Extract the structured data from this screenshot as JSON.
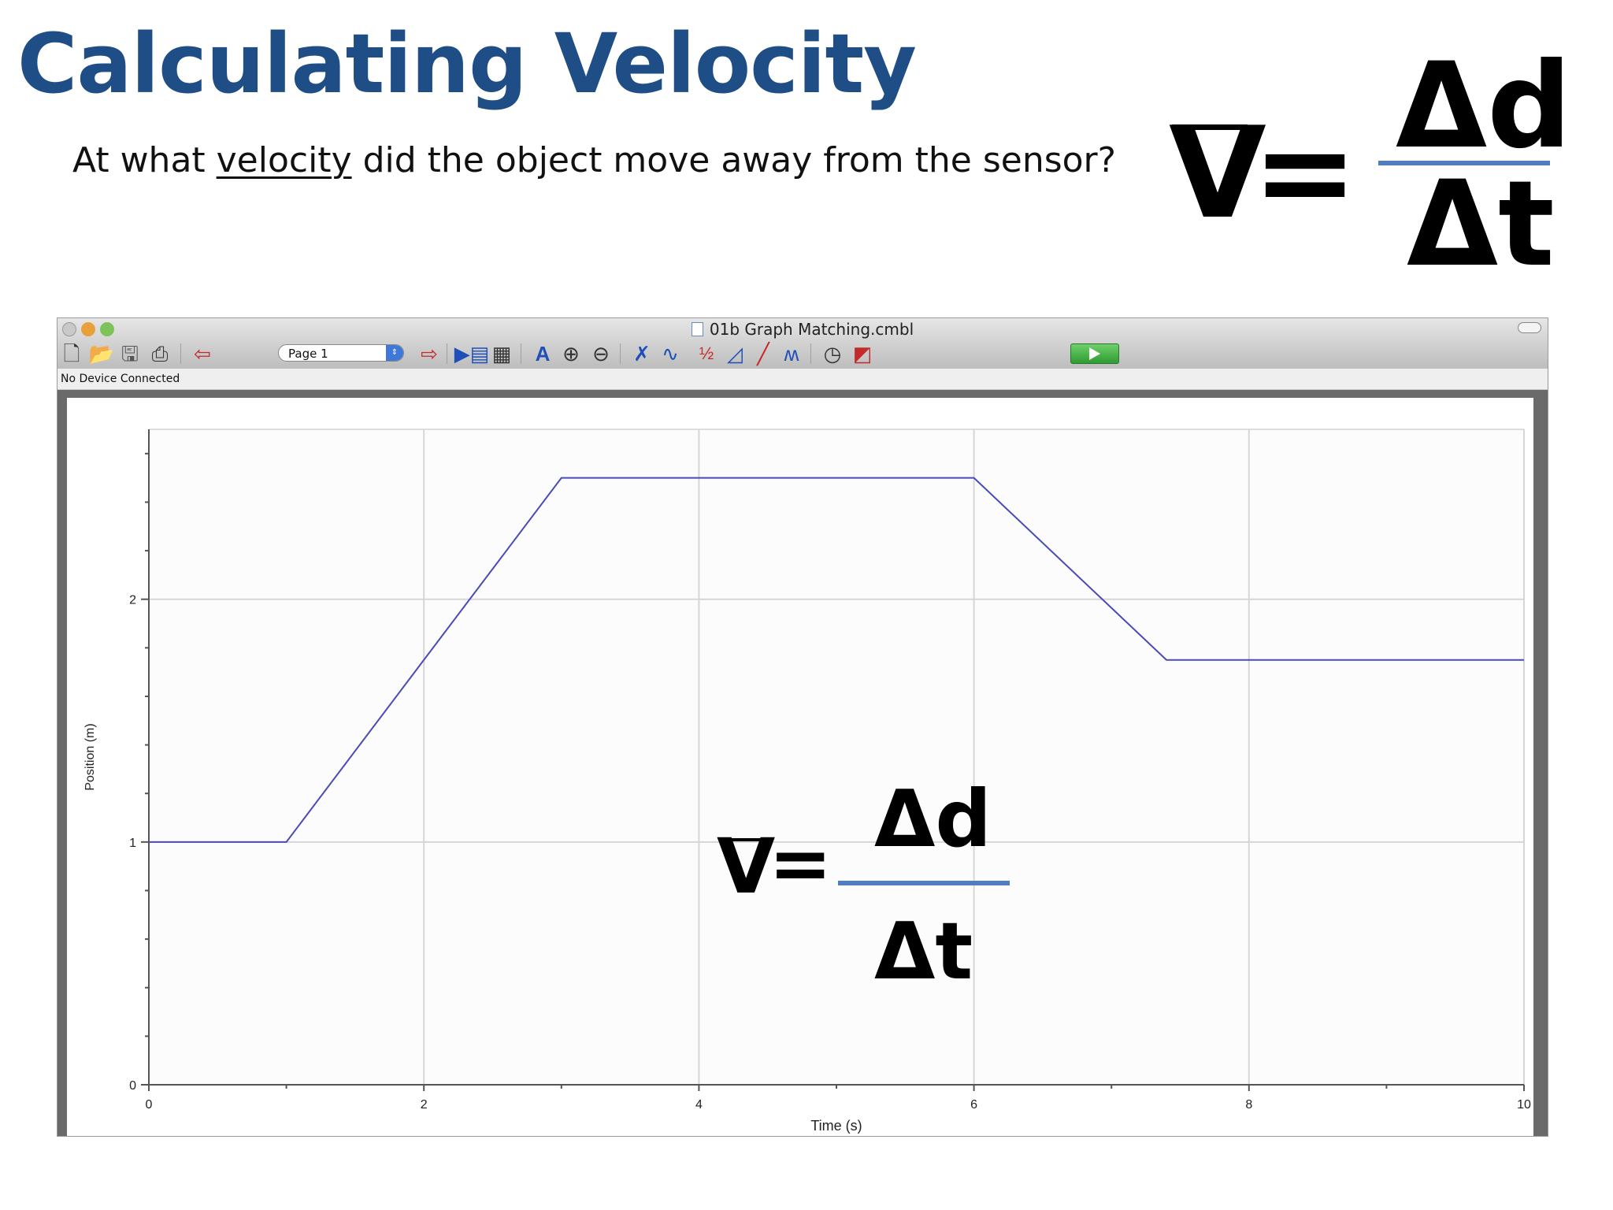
{
  "slide": {
    "title": "Calculating Velocity",
    "question_pre": "At what ",
    "question_key": "velocity",
    "question_post": " did the object move away from the sensor?",
    "colors": {
      "title": "#1f4e87",
      "fraction_line": "#4f7ec0"
    }
  },
  "formula": {
    "v": "V",
    "equals": "=",
    "numerator": "Δd",
    "denominator": "Δt"
  },
  "window": {
    "title": "01b Graph Matching.cmbl",
    "page_select": "Page 1",
    "status": "No Device Connected",
    "toolbar_icons": [
      "new-file-icon",
      "open-folder-icon",
      "save-icon",
      "print-icon",
      "previous-page-icon",
      "page-select",
      "next-page-icon",
      "data-browser-icon",
      "calculator-icon",
      "autoscale-icon",
      "zoom-in-icon",
      "zoom-out-icon",
      "examine-icon",
      "interpolate-icon",
      "tangent-icon",
      "integral-icon",
      "linear-fit-icon",
      "curve-fit-icon",
      "data-collection-icon",
      "strip-chart-icon",
      "collect-button"
    ]
  },
  "chart_data": {
    "type": "line",
    "xlabel": "Time (s)",
    "ylabel": "Position (m)",
    "xlim": [
      0,
      10
    ],
    "ylim": [
      0,
      2.7
    ],
    "xticks": [
      0,
      2,
      4,
      6,
      8,
      10
    ],
    "yticks": [
      0,
      1,
      2
    ],
    "grid": true,
    "series": [
      {
        "x": [
          0,
          1,
          3,
          6,
          7.4,
          10
        ],
        "y": [
          1,
          1,
          2.5,
          2.5,
          1.75,
          1.75
        ],
        "color": "#4a4ab8"
      }
    ]
  }
}
